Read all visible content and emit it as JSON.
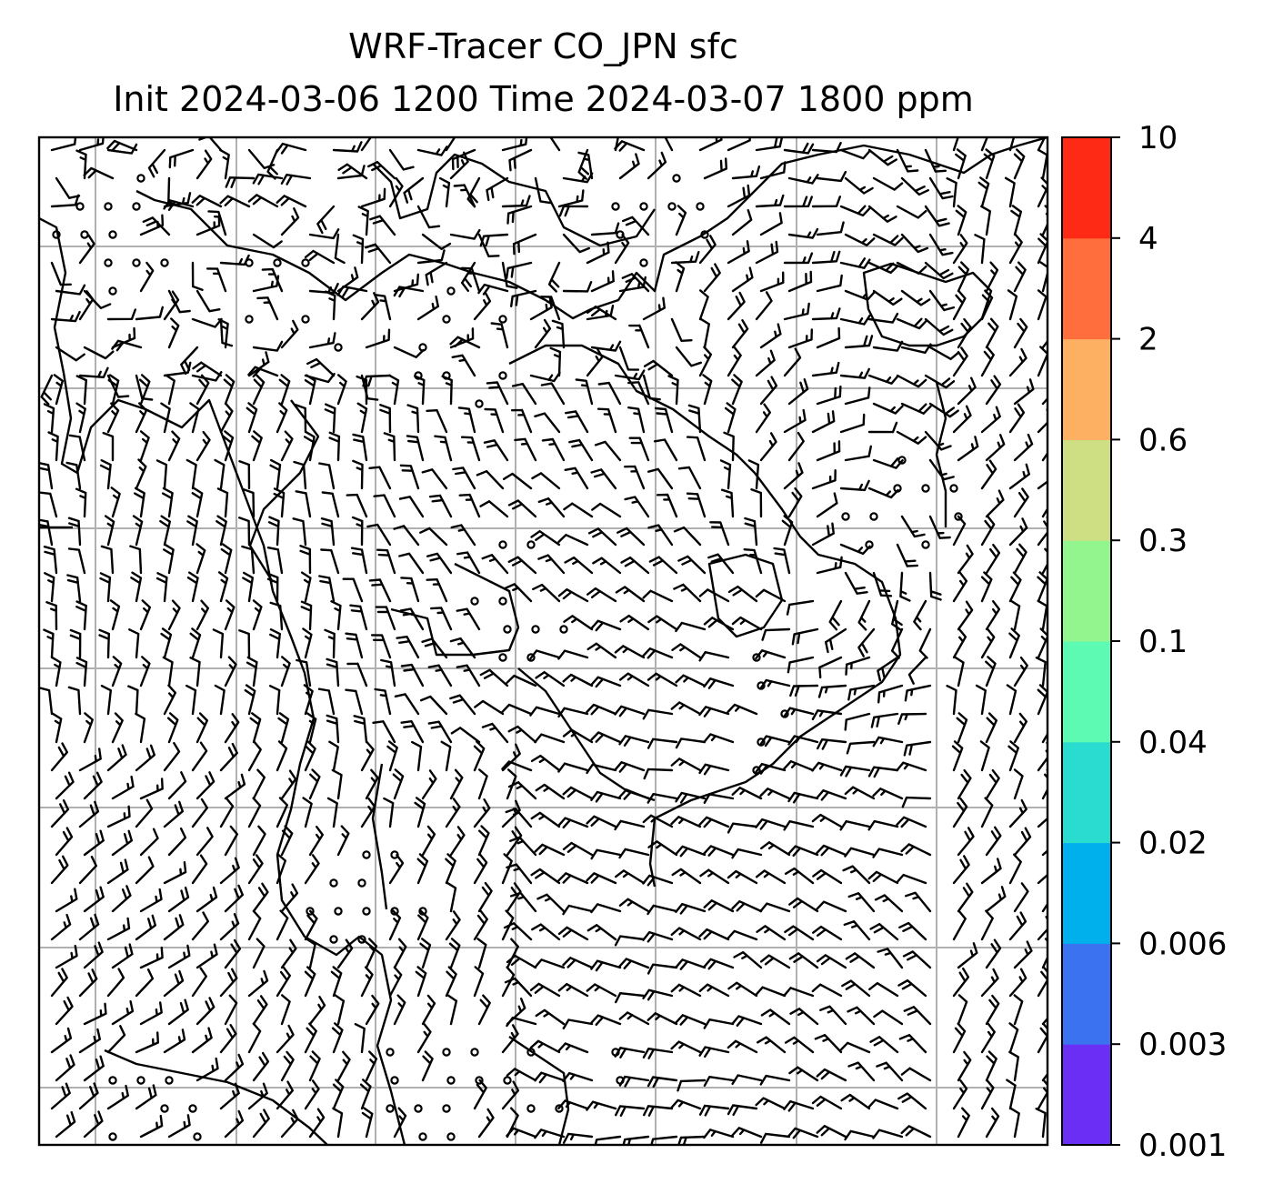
{
  "title_line1": "WRF-Tracer CO_JPN sfc",
  "title_line2": "Init 2024-03-06 1200 Time 2024-03-07 1800 ppm",
  "colorbar": {
    "levels": [
      "0.001",
      "0.003",
      "0.006",
      "0.02",
      "0.04",
      "0.1",
      "0.3",
      "0.6",
      "2",
      "4",
      "10"
    ],
    "colors": [
      "#6a2ef5",
      "#3b72f0",
      "#00b0ec",
      "#2adcd0",
      "#5cfab2",
      "#93f58e",
      "#cede82",
      "#fdaf62",
      "#ff6e3c",
      "#ff2a16"
    ]
  },
  "map": {
    "field_colors": {
      "frame": "#000000",
      "grid": "#b0b0b0",
      "coast": "#000000",
      "barbs": "#000000"
    }
  }
}
